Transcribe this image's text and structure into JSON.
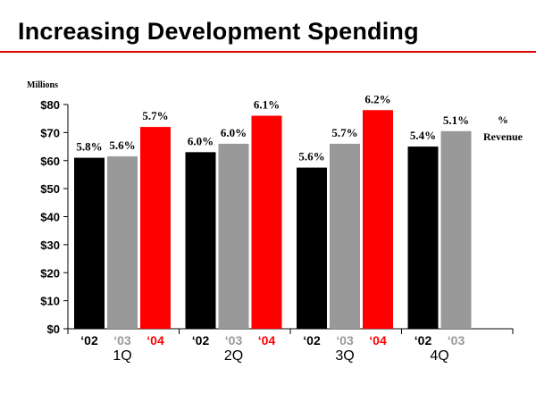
{
  "page": {
    "title": "Increasing Development Spending"
  },
  "colors": {
    "y2002": "#000000",
    "y2003": "#999999",
    "y2004": "#ff0000",
    "rule": "#e00000"
  },
  "chart_data": {
    "type": "bar",
    "title": "Increasing Development Spending",
    "ylabel": "Millions",
    "ylim": [
      0,
      80
    ],
    "yticks": [
      "$0",
      "$10",
      "$20",
      "$30",
      "$40",
      "$50",
      "$60",
      "$70",
      "$80"
    ],
    "ytick_values": [
      0,
      10,
      20,
      30,
      40,
      50,
      60,
      70,
      80
    ],
    "categories": [
      "1Q",
      "2Q",
      "3Q",
      "4Q"
    ],
    "series": [
      {
        "name": "'02",
        "label": "‘02",
        "color": "#000000",
        "values": [
          61,
          63,
          57.5,
          65
        ],
        "pct_revenue": [
          "5.8%",
          "6.0%",
          "5.6%",
          "5.4%"
        ]
      },
      {
        "name": "'03",
        "label": "‘03",
        "color": "#999999",
        "values": [
          61.5,
          66,
          66,
          70.5
        ],
        "pct_revenue": [
          "5.6%",
          "6.0%",
          "5.7%",
          "5.1%"
        ]
      },
      {
        "name": "'04",
        "label": "‘04",
        "color": "#ff0000",
        "values": [
          72,
          76,
          78,
          null
        ],
        "pct_revenue": [
          "5.7%",
          "6.1%",
          "6.2%",
          null
        ]
      }
    ],
    "annotation": {
      "line1": "%",
      "line2": "Revenue"
    }
  }
}
